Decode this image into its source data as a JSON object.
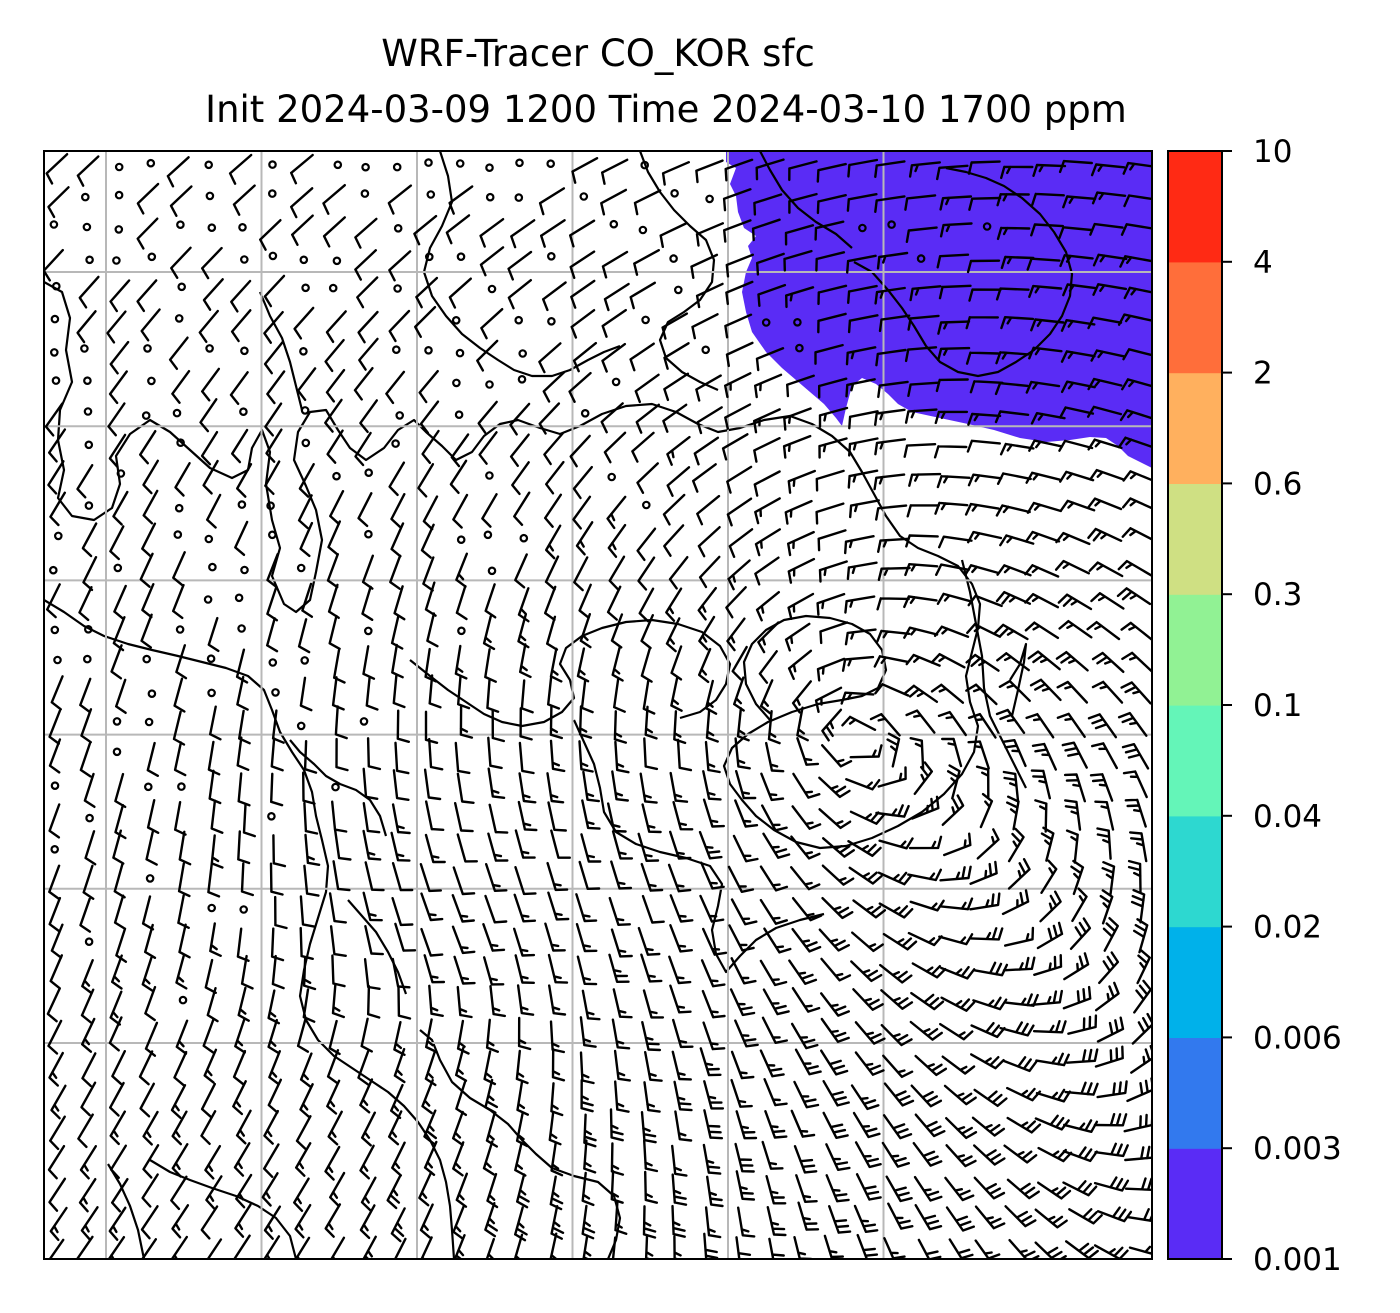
{
  "figure": {
    "title_line1": "WRF-Tracer CO_KOR sfc",
    "title_line2": "Init 2024-03-09 1200 Time 2024-03-10 1700 ppm"
  },
  "colorbar": {
    "levels": [
      "0.001",
      "0.003",
      "0.006",
      "0.02",
      "0.04",
      "0.1",
      "0.3",
      "0.6",
      "2",
      "4",
      "10"
    ],
    "colors": [
      "#5a2cf5",
      "#3279ee",
      "#00b1ea",
      "#2dd8d0",
      "#64f5b8",
      "#91f294",
      "#cfe083",
      "#ffb05e",
      "#ff6e3a",
      "#ff2a14"
    ]
  },
  "map": {
    "plume_color": "#5a2cf5",
    "grid_color": "#b8b8b8",
    "grid_columns": 7,
    "grid_rows": 7
  }
}
